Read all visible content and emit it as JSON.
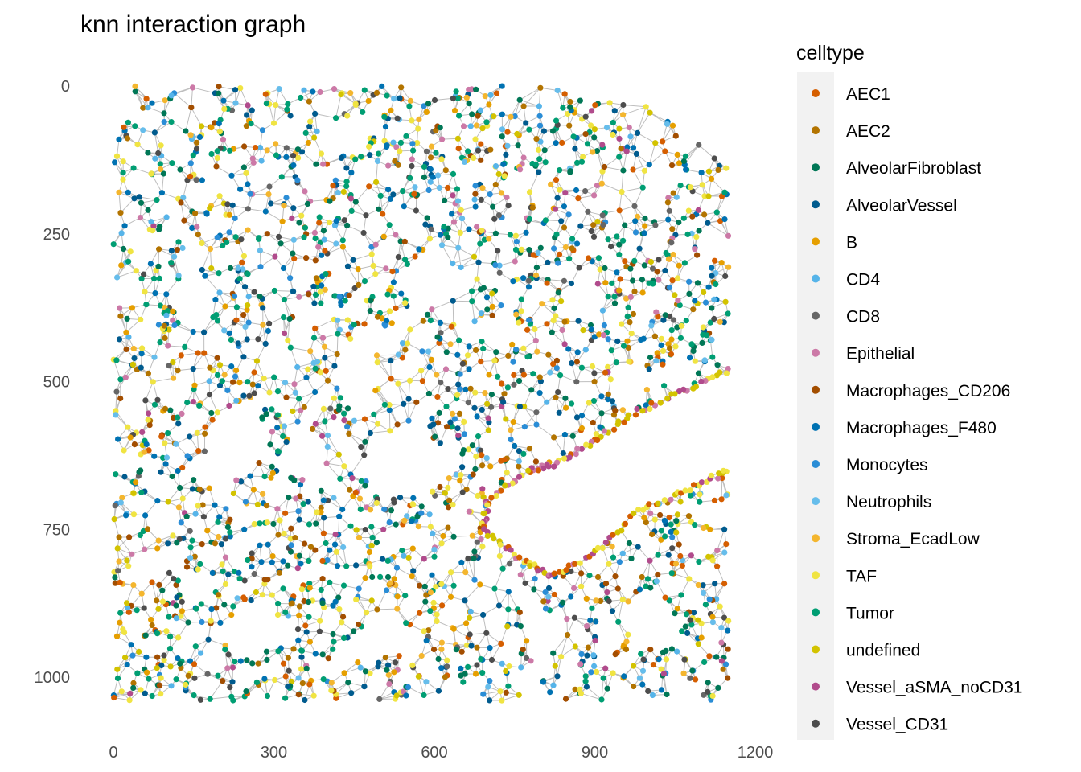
{
  "chart_data": {
    "type": "scatter",
    "title": "knn interaction graph",
    "xlabel": "",
    "ylabel": "",
    "xlim": [
      0,
      1200
    ],
    "ylim": [
      0,
      1050
    ],
    "y_reversed": true,
    "x_ticks": [
      "0",
      "300",
      "600",
      "900",
      "1200"
    ],
    "y_ticks": [
      "0",
      "250",
      "500",
      "750",
      "1000"
    ],
    "grid": false,
    "edge_color": "#bebebe",
    "legend": {
      "title": "celltype",
      "position": "right",
      "background": "#f2f2f2",
      "entries": [
        {
          "label": "AEC1",
          "color": "#D55E00"
        },
        {
          "label": "AEC2",
          "color": "#B37400"
        },
        {
          "label": "AlveolarFibroblast",
          "color": "#007756"
        },
        {
          "label": "AlveolarVessel",
          "color": "#005B8E"
        },
        {
          "label": "B",
          "color": "#E69F00"
        },
        {
          "label": "CD4",
          "color": "#56B4E9"
        },
        {
          "label": "CD8",
          "color": "#666666"
        },
        {
          "label": "Epithelial",
          "color": "#CC79A7"
        },
        {
          "label": "Macrophages_CD206",
          "color": "#A34E00"
        },
        {
          "label": "Macrophages_F480",
          "color": "#0072B2"
        },
        {
          "label": "Monocytes",
          "color": "#2A8DD6"
        },
        {
          "label": "Neutrophils",
          "color": "#66BDEB"
        },
        {
          "label": "Stroma_EcadLow",
          "color": "#F4B62E"
        },
        {
          "label": "TAF",
          "color": "#F0E442"
        },
        {
          "label": "Tumor",
          "color": "#009E73"
        },
        {
          "label": "undefined",
          "color": "#D3C300"
        },
        {
          "label": "Vessel_aSMA_noCD31",
          "color": "#B14B8C"
        },
        {
          "label": "Vessel_CD31",
          "color": "#4D4D4D"
        }
      ]
    },
    "generator": {
      "point_count": 2600,
      "x_range": [
        0,
        1150
      ],
      "y_range": [
        0,
        1040
      ],
      "holes": [
        {
          "x": 595,
          "y": 330,
          "rx": 50,
          "ry": 45
        },
        {
          "x": 150,
          "y": 360,
          "rx": 40,
          "ry": 45
        },
        {
          "x": 460,
          "y": 490,
          "rx": 30,
          "ry": 60
        },
        {
          "x": 550,
          "y": 640,
          "rx": 80,
          "ry": 55
        },
        {
          "x": 230,
          "y": 600,
          "rx": 55,
          "ry": 55
        },
        {
          "x": 360,
          "y": 620,
          "rx": 35,
          "ry": 40
        },
        {
          "x": 430,
          "y": 90,
          "rx": 40,
          "ry": 25
        },
        {
          "x": 260,
          "y": 920,
          "rx": 45,
          "ry": 45
        },
        {
          "x": 510,
          "y": 930,
          "rx": 40,
          "ry": 35
        },
        {
          "x": 880,
          "y": 360,
          "rx": 35,
          "ry": 35
        },
        {
          "x": 720,
          "y": 420,
          "rx": 30,
          "ry": 30
        },
        {
          "x": 1000,
          "y": 900,
          "rx": 40,
          "ry": 45
        },
        {
          "x": 810,
          "y": 920,
          "rx": 35,
          "ry": 30
        },
        {
          "x": 350,
          "y": 420,
          "rx": 25,
          "ry": 30
        },
        {
          "x": 1020,
          "y": 160,
          "rx": 30,
          "ry": 30
        }
      ],
      "cut_regions": [
        {
          "type": "poly",
          "points": [
            [
              1150,
              480
            ],
            [
              1060,
              520
            ],
            [
              980,
              550
            ],
            [
              900,
              600
            ],
            [
              830,
              640
            ],
            [
              780,
              650
            ],
            [
              700,
              700
            ],
            [
              690,
              750
            ],
            [
              760,
              800
            ],
            [
              820,
              830
            ],
            [
              900,
              790
            ],
            [
              980,
              720
            ],
            [
              1080,
              680
            ],
            [
              1150,
              650
            ]
          ]
        },
        {
          "type": "poly",
          "points": [
            [
              830,
              0
            ],
            [
              1150,
              0
            ],
            [
              1150,
              140
            ],
            [
              1000,
              30
            ],
            [
              900,
              20
            ]
          ]
        },
        {
          "type": "poly",
          "points": [
            [
              1150,
              260
            ],
            [
              1100,
              270
            ],
            [
              1150,
              300
            ]
          ]
        },
        {
          "type": "poly",
          "points": [
            [
              0,
              0
            ],
            [
              0,
              120
            ],
            [
              20,
              60
            ],
            [
              40,
              0
            ]
          ]
        }
      ]
    }
  }
}
